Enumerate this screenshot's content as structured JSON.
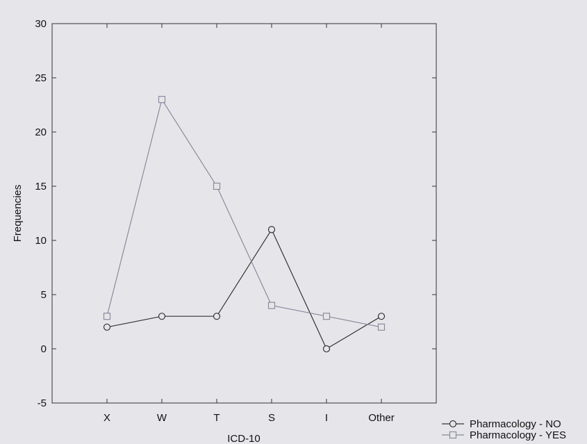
{
  "chart_data": {
    "type": "line",
    "title": "",
    "xlabel": "ICD-10",
    "ylabel": "Frequencies",
    "categories": [
      "X",
      "W",
      "T",
      "S",
      "I",
      "Other"
    ],
    "ylim": [
      -5,
      30
    ],
    "yticks": [
      -5,
      0,
      5,
      10,
      15,
      20,
      25,
      30
    ],
    "grid": false,
    "legend_position": "bottom-right",
    "series": [
      {
        "name": "Pharmacology - NO",
        "marker": "circle",
        "color": "#333333",
        "values": [
          2,
          3,
          3,
          11,
          0,
          3
        ]
      },
      {
        "name": "Pharmacology - YES",
        "marker": "square",
        "color": "#8a8a9e",
        "values": [
          3,
          23,
          15,
          4,
          3,
          2
        ]
      }
    ]
  }
}
